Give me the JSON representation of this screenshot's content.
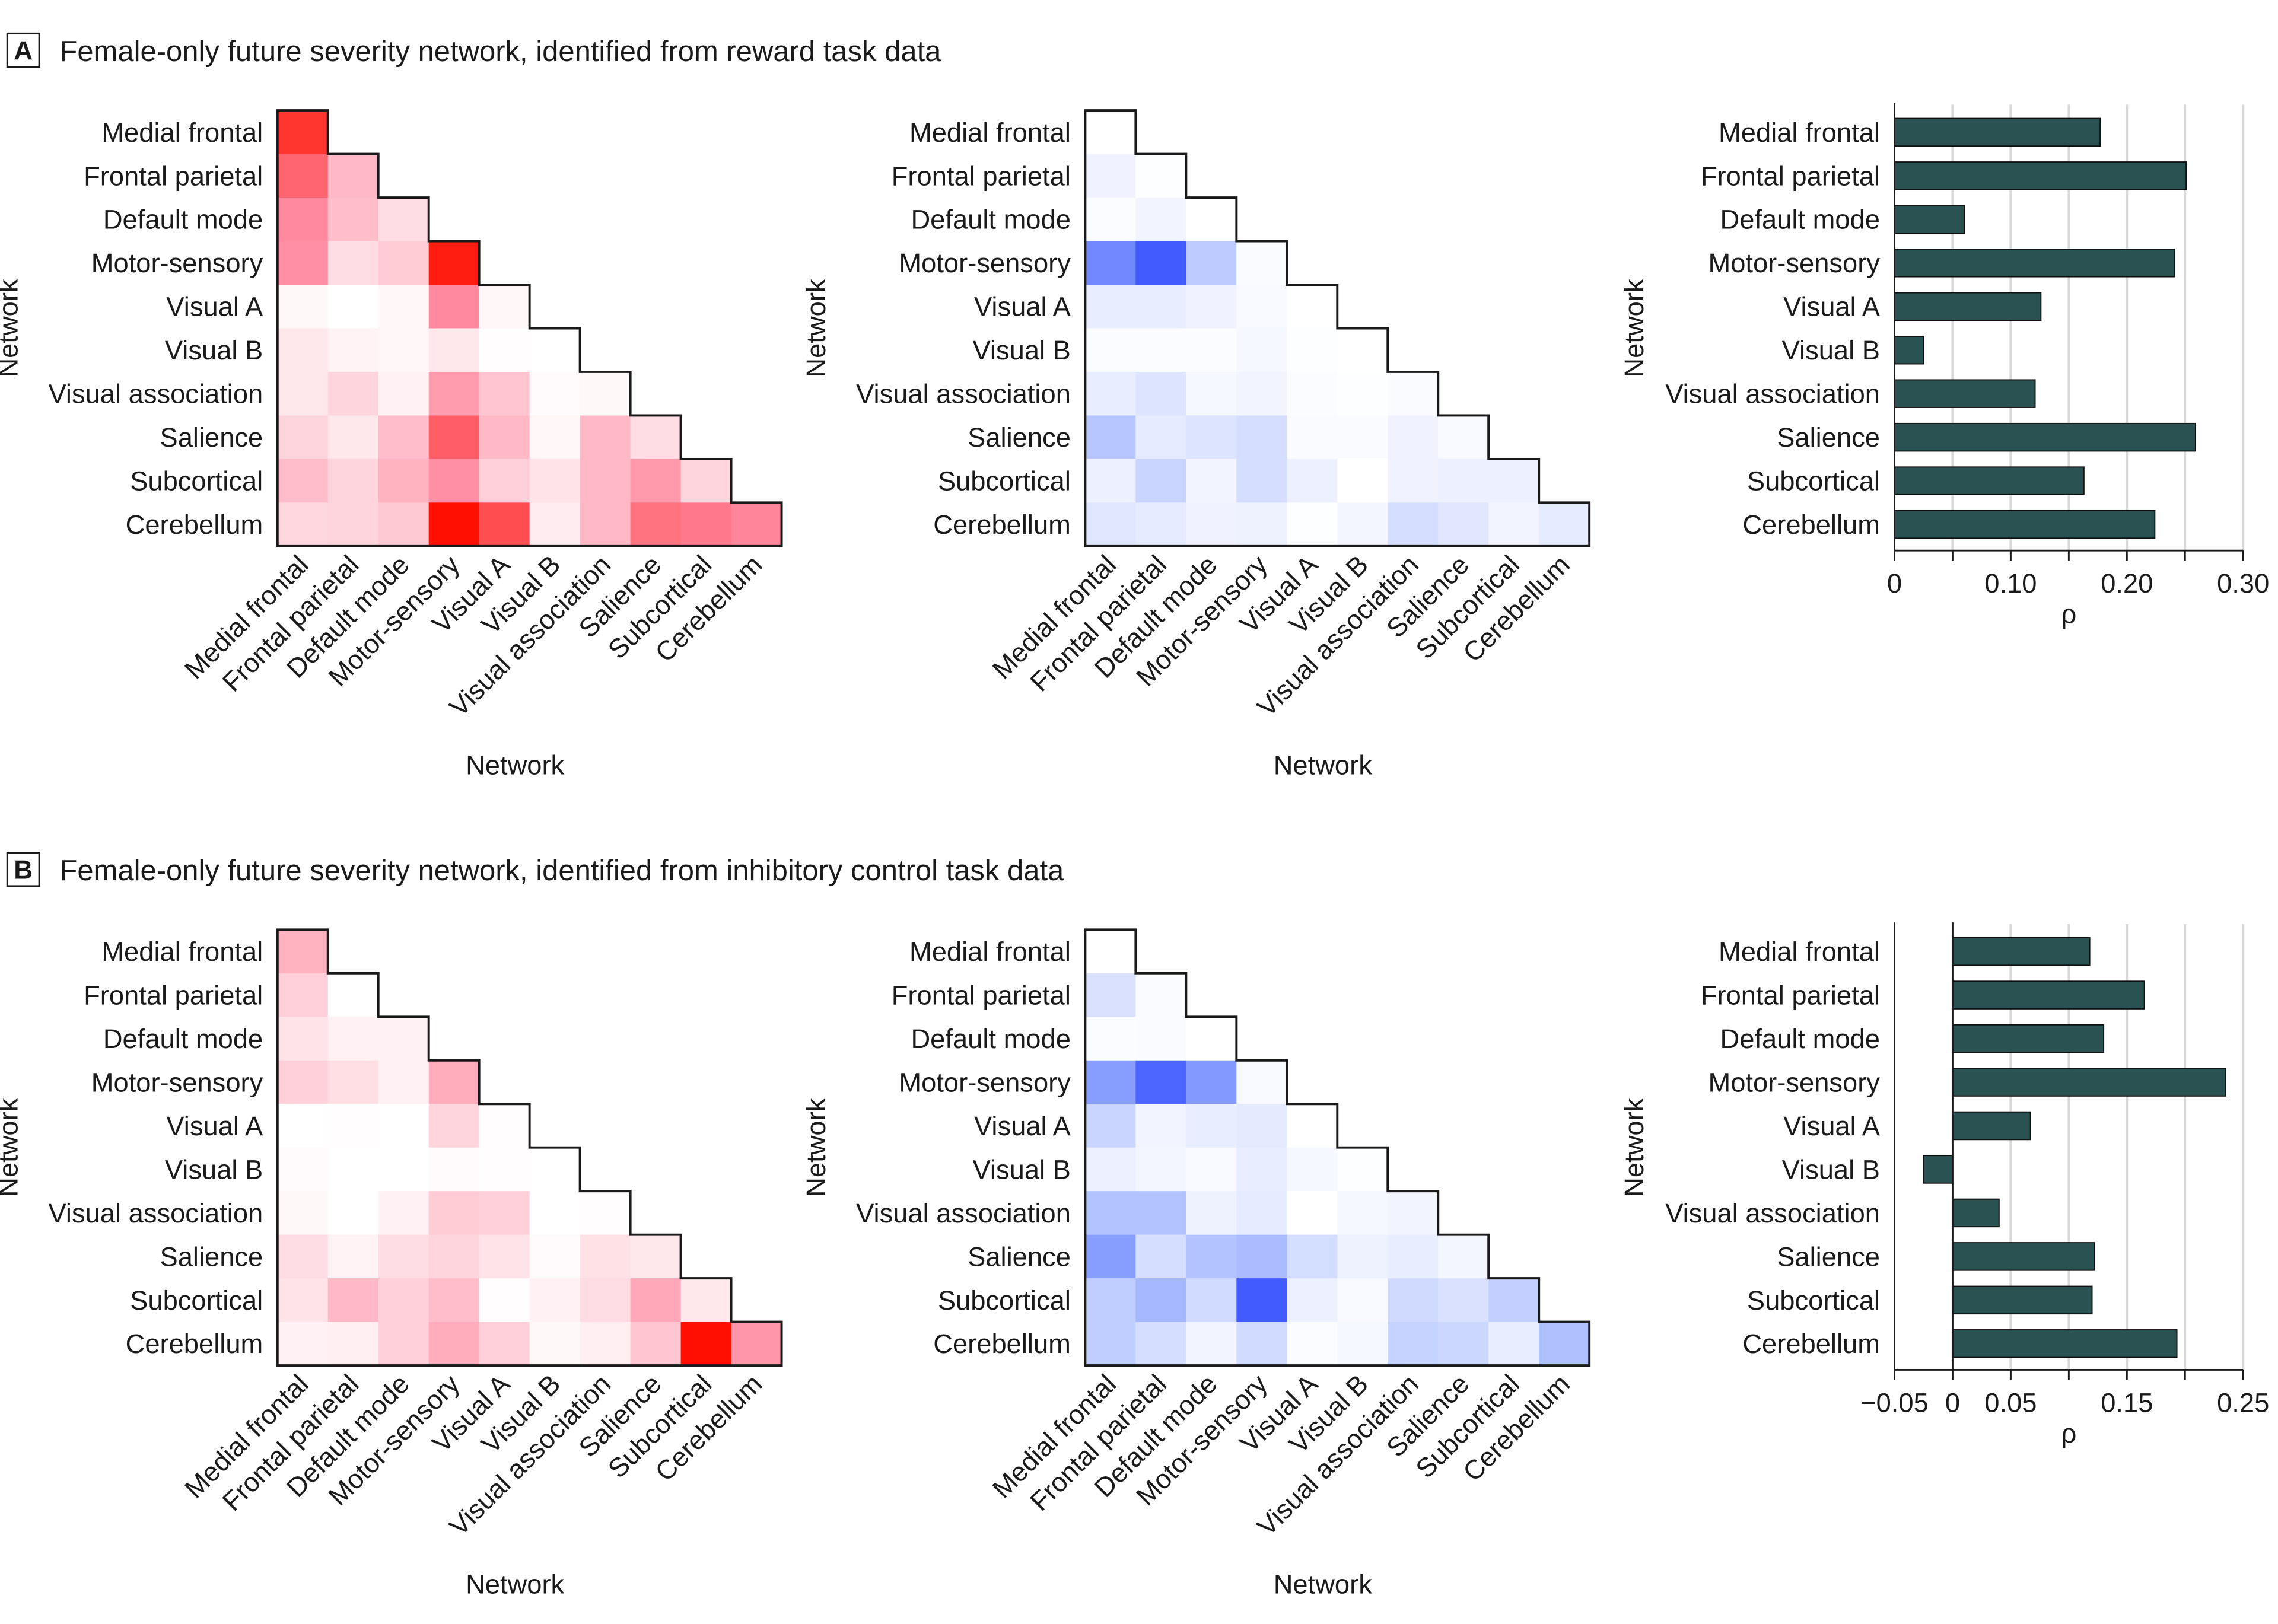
{
  "networks": [
    "Medial frontal",
    "Frontal parietal",
    "Default mode",
    "Motor-sensory",
    "Visual A",
    "Visual B",
    "Visual association",
    "Salience",
    "Subcortical",
    "Cerebellum"
  ],
  "colors": {
    "bar": "#2b5252",
    "grid": "#d9d9d9",
    "text": "#1a1a1a"
  },
  "panels": [
    {
      "letter": "A",
      "title": "Female-only future severity network, identified from reward task data",
      "axis_label": "Network",
      "rho_label": "ρ"
    },
    {
      "letter": "B",
      "title": "Female-only future severity network, identified from inhibitory control task data",
      "axis_label": "Network",
      "rho_label": "ρ"
    }
  ],
  "chart_data": [
    {
      "type": "heatmap",
      "panel": "A",
      "colormap": [
        "#ffffff",
        "#ff8aa0",
        "#ff1000"
      ],
      "xlabel": "Network",
      "ylabel": "Network",
      "lower_triangle": true,
      "intensity": [
        [
          0.85
        ],
        [
          0.65,
          0.3
        ],
        [
          0.5,
          0.28,
          0.15
        ],
        [
          0.48,
          0.15,
          0.22,
          0.95
        ],
        [
          0.03,
          0,
          0.04,
          0.5,
          0.04
        ],
        [
          0.1,
          0.05,
          0.04,
          0.1,
          0.01,
          0
        ],
        [
          0.1,
          0.18,
          0.06,
          0.42,
          0.25,
          0.02,
          0.03
        ],
        [
          0.18,
          0.1,
          0.28,
          0.68,
          0.3,
          0.04,
          0.3,
          0.15
        ],
        [
          0.28,
          0.18,
          0.33,
          0.48,
          0.2,
          0.12,
          0.3,
          0.43,
          0.18
        ],
        [
          0.17,
          0.18,
          0.23,
          1.0,
          0.75,
          0.08,
          0.3,
          0.6,
          0.57,
          0.52
        ]
      ]
    },
    {
      "type": "heatmap",
      "panel": "A",
      "colormap": [
        "#ffffff",
        "#a0b4ff",
        "#2a45ff"
      ],
      "xlabel": "Network",
      "ylabel": "Network",
      "lower_triangle": true,
      "intensity": [
        [
          0
        ],
        [
          0.08,
          0.01
        ],
        [
          0.02,
          0.07,
          0
        ],
        [
          0.7,
          0.9,
          0.35,
          0.03
        ],
        [
          0.12,
          0.12,
          0.08,
          0.04,
          0
        ],
        [
          0.02,
          0.02,
          0.02,
          0.05,
          0.01,
          0
        ],
        [
          0.12,
          0.18,
          0.05,
          0.07,
          0.02,
          0.01,
          0.03
        ],
        [
          0.38,
          0.13,
          0.18,
          0.22,
          0.03,
          0.03,
          0.08,
          0.04
        ],
        [
          0.1,
          0.28,
          0.07,
          0.22,
          0.1,
          0,
          0.08,
          0.1,
          0.1
        ],
        [
          0.17,
          0.13,
          0.08,
          0.09,
          0.01,
          0.06,
          0.22,
          0.16,
          0.07,
          0.13
        ]
      ]
    },
    {
      "type": "bar",
      "panel": "A",
      "orientation": "horizontal",
      "xlabel": "ρ",
      "ylabel": "Network",
      "xlim": [
        0,
        0.3
      ],
      "xticks": [
        0,
        0.05,
        0.1,
        0.15,
        0.2,
        0.25,
        0.3
      ],
      "xtick_labels": [
        "0",
        "",
        "0.10",
        "",
        "0.20",
        "",
        "0.30"
      ],
      "grid": true,
      "values": [
        0.177,
        0.251,
        0.06,
        0.241,
        0.126,
        0.025,
        0.121,
        0.259,
        0.163,
        0.224
      ]
    },
    {
      "type": "heatmap",
      "panel": "B",
      "colormap": [
        "#ffffff",
        "#ff8aa0",
        "#ff1000"
      ],
      "xlabel": "Network",
      "ylabel": "Network",
      "lower_triangle": true,
      "intensity": [
        [
          0.33
        ],
        [
          0.2,
          0
        ],
        [
          0.12,
          0.06,
          0.06
        ],
        [
          0.2,
          0.14,
          0.06,
          0.35
        ],
        [
          0,
          0.01,
          0,
          0.18,
          0.01
        ],
        [
          0.02,
          0,
          0,
          0.02,
          0.01,
          0
        ],
        [
          0.03,
          0,
          0.06,
          0.22,
          0.2,
          0,
          0.01
        ],
        [
          0.15,
          0.05,
          0.15,
          0.18,
          0.12,
          0.02,
          0.13,
          0.1
        ],
        [
          0.12,
          0.3,
          0.2,
          0.28,
          0.01,
          0.06,
          0.15,
          0.37,
          0.1
        ],
        [
          0.06,
          0.07,
          0.2,
          0.35,
          0.2,
          0.03,
          0.07,
          0.25,
          1.0,
          0.45
        ]
      ]
    },
    {
      "type": "heatmap",
      "panel": "B",
      "colormap": [
        "#ffffff",
        "#a0b4ff",
        "#2a45ff"
      ],
      "xlabel": "Network",
      "ylabel": "Network",
      "lower_triangle": true,
      "intensity": [
        [
          0
        ],
        [
          0.2,
          0.03
        ],
        [
          0.02,
          0.03,
          0
        ],
        [
          0.6,
          0.85,
          0.62,
          0.04
        ],
        [
          0.28,
          0.07,
          0.12,
          0.14,
          0
        ],
        [
          0.1,
          0.06,
          0.04,
          0.12,
          0.05,
          0.01
        ],
        [
          0.4,
          0.4,
          0.09,
          0.13,
          0,
          0.05,
          0.07
        ],
        [
          0.6,
          0.22,
          0.4,
          0.45,
          0.23,
          0.09,
          0.12,
          0.06
        ],
        [
          0.33,
          0.48,
          0.24,
          0.9,
          0.1,
          0.04,
          0.25,
          0.2,
          0.32
        ],
        [
          0.33,
          0.22,
          0.07,
          0.24,
          0.02,
          0.05,
          0.3,
          0.27,
          0.12,
          0.42
        ]
      ]
    },
    {
      "type": "bar",
      "panel": "B",
      "orientation": "horizontal",
      "xlabel": "ρ",
      "ylabel": "Network",
      "xlim": [
        -0.05,
        0.25
      ],
      "xticks": [
        -0.05,
        0,
        0.05,
        0.1,
        0.15,
        0.2,
        0.25
      ],
      "xtick_labels": [
        "−0.05",
        "0",
        "0.05",
        "",
        "0.15",
        "",
        "0.25"
      ],
      "grid": true,
      "values": [
        0.118,
        0.165,
        0.13,
        0.235,
        0.067,
        -0.025,
        0.04,
        0.122,
        0.12,
        0.193
      ]
    }
  ]
}
